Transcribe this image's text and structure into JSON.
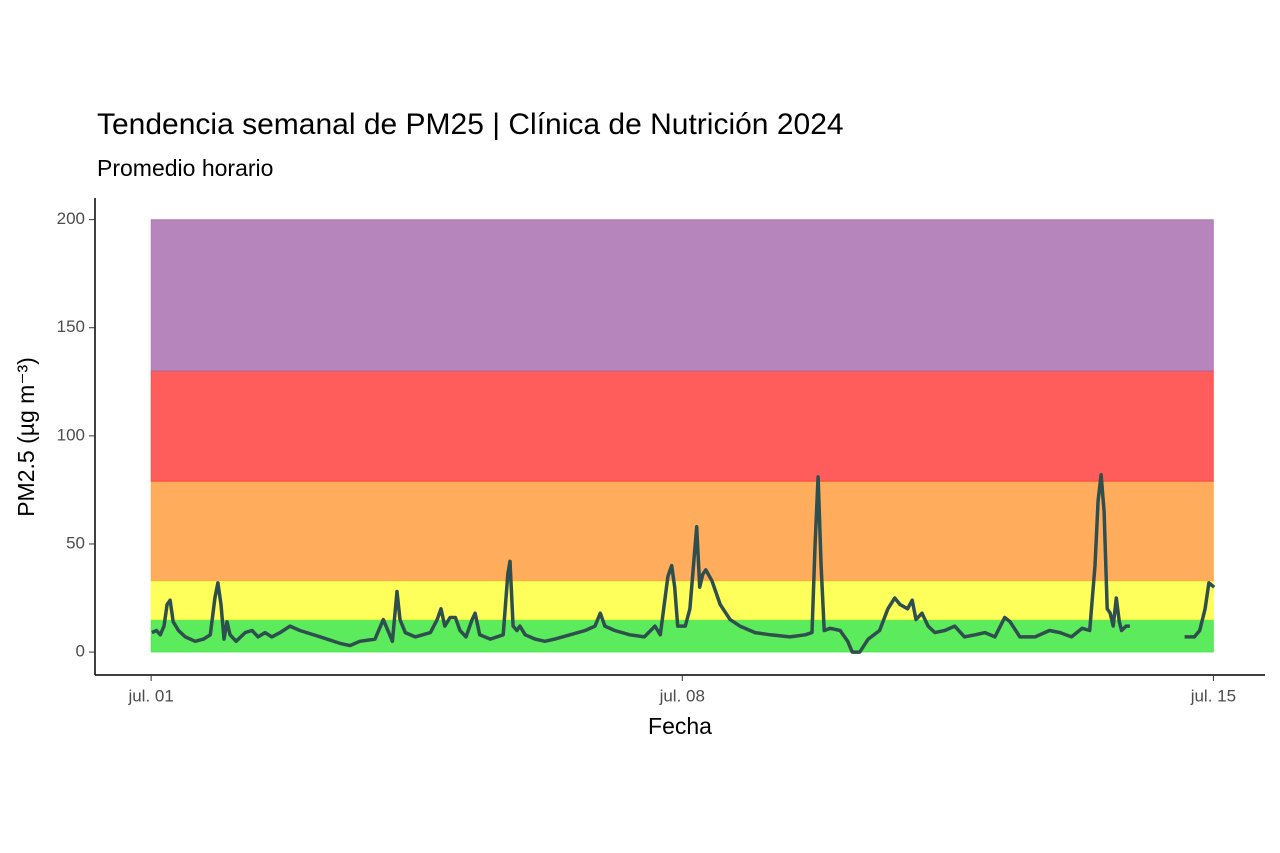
{
  "chart_data": {
    "type": "line",
    "title": "Tendencia semanal de PM25 | Clínica de Nutrición 2024",
    "subtitle": "Promedio horario",
    "x_label": "Fecha",
    "y_label": "PM2.5 (µg m⁻³)",
    "xlim": [
      -0.74,
      14.68
    ],
    "xticks": [
      {
        "value": 0,
        "label": "jul. 01"
      },
      {
        "value": 7,
        "label": "jul. 08"
      },
      {
        "value": 14,
        "label": "jul. 15"
      }
    ],
    "ylim": [
      -10.6,
      210
    ],
    "yticks": [
      0,
      50,
      100,
      150,
      200
    ],
    "grid": false,
    "band_x": [
      0,
      14
    ],
    "bands": [
      {
        "y": [
          0,
          15
        ],
        "color": "#33e633"
      },
      {
        "y": [
          15,
          33
        ],
        "color": "#ffff33"
      },
      {
        "y": [
          33,
          79
        ],
        "color": "#ff9933"
      },
      {
        "y": [
          79,
          130
        ],
        "color": "#ff3333"
      },
      {
        "y": [
          130,
          200
        ],
        "color": "#a366aa"
      }
    ],
    "x": [
      0.01,
      0.07,
      0.12,
      0.17,
      0.21,
      0.25,
      0.29,
      0.36,
      0.45,
      0.58,
      0.69,
      0.78,
      0.84,
      0.88,
      0.92,
      0.96,
      1.0,
      1.04,
      1.12,
      1.24,
      1.33,
      1.41,
      1.5,
      1.59,
      1.7,
      1.83,
      1.96,
      2.23,
      2.49,
      2.62,
      2.75,
      2.95,
      3.06,
      3.12,
      3.18,
      3.24,
      3.28,
      3.35,
      3.48,
      3.68,
      3.77,
      3.82,
      3.87,
      3.94,
      4.01,
      4.07,
      4.15,
      4.23,
      4.27,
      4.33,
      4.47,
      4.64,
      4.7,
      4.73,
      4.77,
      4.82,
      4.86,
      4.93,
      5.06,
      5.19,
      5.32,
      5.52,
      5.72,
      5.85,
      5.92,
      5.98,
      6.11,
      6.31,
      6.5,
      6.64,
      6.71,
      6.81,
      6.86,
      6.9,
      6.94,
      7.04,
      7.1,
      7.19,
      7.23,
      7.27,
      7.31,
      7.39,
      7.5,
      7.63,
      7.76,
      7.96,
      8.16,
      8.42,
      8.62,
      8.71,
      8.75,
      8.79,
      8.83,
      8.87,
      8.95,
      9.08,
      9.18,
      9.24,
      9.34,
      9.45,
      9.6,
      9.71,
      9.8,
      9.87,
      9.97,
      10.03,
      10.08,
      10.16,
      10.24,
      10.33,
      10.46,
      10.59,
      10.72,
      10.86,
      10.99,
      11.12,
      11.25,
      11.32,
      11.45,
      11.65,
      11.84,
      11.98,
      12.13,
      12.27,
      12.37,
      12.44,
      12.48,
      12.52,
      12.56,
      12.6,
      12.64,
      12.68,
      12.72,
      12.76,
      12.79,
      12.85,
      12.9,
      13.2,
      13.62,
      13.75,
      13.82,
      13.89,
      13.94,
      14.01
    ],
    "series": [
      {
        "color": "#2f4f4f",
        "values": [
          9,
          10,
          8,
          12,
          22,
          24,
          14,
          10,
          7,
          5,
          6,
          8,
          25,
          32,
          22,
          6,
          14,
          8,
          5,
          9,
          10,
          7,
          9,
          7,
          9,
          12,
          10,
          7,
          4,
          3,
          5,
          6,
          15,
          10,
          5,
          28,
          15,
          9,
          7,
          9,
          15,
          20,
          12,
          16,
          16,
          10,
          7,
          15,
          18,
          8,
          6,
          8,
          36,
          42,
          12,
          10,
          12,
          8,
          6,
          5,
          6,
          8,
          10,
          12,
          18,
          12,
          10,
          8,
          7,
          12,
          8,
          35,
          40,
          30,
          12,
          12,
          20,
          58,
          30,
          36,
          38,
          33,
          22,
          15,
          12,
          9,
          8,
          7,
          8,
          9,
          50,
          81,
          40,
          10,
          11,
          10,
          5,
          0,
          0,
          6,
          10,
          20,
          25,
          22,
          20,
          24,
          15,
          18,
          12,
          9,
          10,
          12,
          7,
          8,
          9,
          7,
          16,
          14,
          7,
          7,
          10,
          9,
          7,
          11,
          10,
          40,
          70,
          82,
          65,
          20,
          18,
          12,
          25,
          14,
          10,
          12,
          12,
          null,
          7,
          7,
          10,
          20,
          32,
          30
        ]
      }
    ]
  }
}
